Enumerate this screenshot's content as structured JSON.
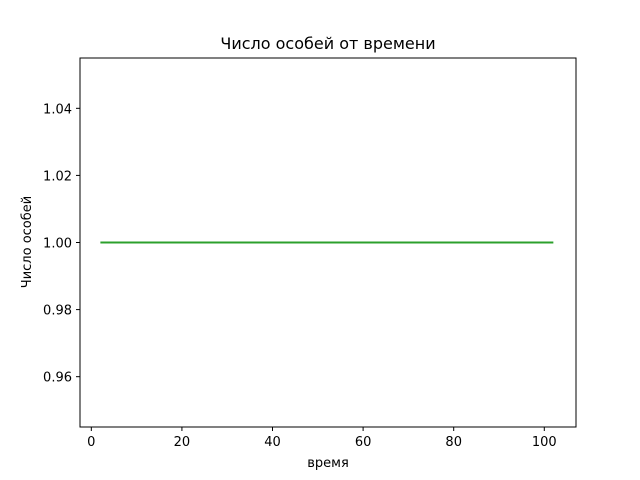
{
  "chart_data": {
    "type": "line",
    "title": "Число особей от времени",
    "xlabel": "время",
    "ylabel": "Число особей",
    "xlim": [
      -2.5,
      107
    ],
    "ylim": [
      0.945,
      1.055
    ],
    "x_ticks": [
      0,
      20,
      40,
      60,
      80,
      100
    ],
    "y_ticks": [
      0.96,
      0.98,
      1.0,
      1.02,
      1.04
    ],
    "x_tick_labels": [
      "0",
      "20",
      "40",
      "60",
      "80",
      "100"
    ],
    "y_tick_labels": [
      "0.96",
      "0.98",
      "1.00",
      "1.02",
      "1.04"
    ],
    "grid": false,
    "series": [
      {
        "color": "#2ca02c",
        "x": [
          2,
          102
        ],
        "y": [
          1.0,
          1.0
        ]
      }
    ]
  }
}
